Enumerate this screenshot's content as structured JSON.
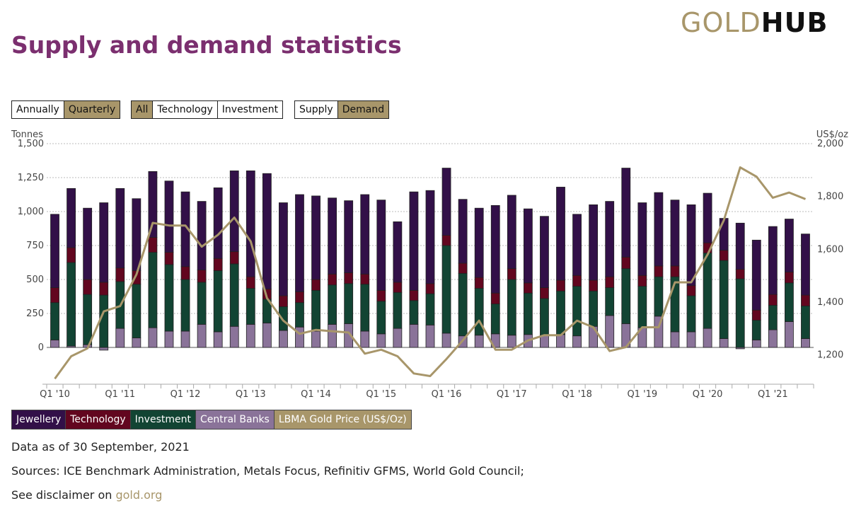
{
  "logo": {
    "gold": "GOLD",
    "hub": "HUB"
  },
  "title": "Supply and demand statistics",
  "controls": {
    "period": [
      {
        "label": "Annually",
        "active": false
      },
      {
        "label": "Quarterly",
        "active": true
      }
    ],
    "sector": [
      {
        "label": "All",
        "active": true
      },
      {
        "label": "Technology",
        "active": false
      },
      {
        "label": "Investment",
        "active": false
      }
    ],
    "side": [
      {
        "label": "Supply",
        "active": false
      },
      {
        "label": "Demand",
        "active": true
      }
    ]
  },
  "legend": [
    {
      "label": "Jewellery",
      "color": "#321048"
    },
    {
      "label": "Technology",
      "color": "#62061f"
    },
    {
      "label": "Investment",
      "color": "#124433"
    },
    {
      "label": "Central Banks",
      "color": "#8a7399"
    },
    {
      "label": "LBMA Gold Price (US$/Oz)",
      "color": "#a8966a"
    }
  ],
  "footer": {
    "data_as_of": "Data as of 30 September, 2021",
    "sources": "Sources: ICE Benchmark Administration, Metals Focus, Refinitiv GFMS, World Gold Council;",
    "disclaimer_prefix": "See disclaimer on ",
    "disclaimer_link": "gold.org"
  },
  "chart_data": {
    "type": "bar",
    "left_axis_label": "Tonnes",
    "right_axis_label": "US$/oz",
    "left_ticks": [
      "1,500",
      "1,250",
      "1,000",
      "750",
      "500",
      "250",
      "0"
    ],
    "left_tick_values": [
      1500,
      1250,
      1000,
      750,
      500,
      250,
      0
    ],
    "right_ticks": [
      "2,000",
      "1,800",
      "1,600",
      "1,400",
      "1,200"
    ],
    "right_tick_values": [
      2000,
      1800,
      1600,
      1400,
      1200
    ],
    "left_ylim": [
      -250,
      1500
    ],
    "right_ylim": [
      1100,
      2000
    ],
    "x_tick_labels": [
      "Q1 '10",
      "Q1 '11",
      "Q1 '12",
      "Q1 '13",
      "Q1 '14",
      "Q1 '15",
      "Q1 '16",
      "Q1 '17",
      "Q1 '18",
      "Q1 '19",
      "Q1 '20",
      "Q1 '21"
    ],
    "grid": true,
    "stacked_series": [
      {
        "name": "Central Banks",
        "values": [
          55,
          10,
          20,
          -20,
          140,
          70,
          145,
          120,
          120,
          170,
          115,
          155,
          170,
          180,
          125,
          150,
          120,
          170,
          175,
          120,
          100,
          140,
          170,
          165,
          105,
          85,
          90,
          100,
          90,
          95,
          90,
          95,
          85,
          155,
          235,
          175,
          145,
          230,
          115,
          115,
          140,
          65,
          -10,
          55,
          130,
          190,
          65
        ]
      },
      {
        "name": "Investment",
        "values": [
          275,
          615,
          370,
          385,
          345,
          395,
          555,
          490,
          380,
          310,
          450,
          460,
          265,
          175,
          175,
          180,
          300,
          290,
          295,
          345,
          240,
          265,
          175,
          230,
          645,
          460,
          345,
          220,
          410,
          305,
          270,
          320,
          365,
          260,
          205,
          405,
          305,
          290,
          405,
          265,
          555,
          575,
          505,
          145,
          180,
          285,
          240
        ]
      },
      {
        "name": "Technology",
        "values": [
          110,
          110,
          110,
          95,
          100,
          100,
          110,
          90,
          95,
          90,
          90,
          90,
          85,
          75,
          80,
          80,
          80,
          80,
          80,
          75,
          80,
          75,
          75,
          75,
          75,
          75,
          80,
          80,
          80,
          75,
          80,
          80,
          80,
          80,
          80,
          85,
          80,
          80,
          80,
          75,
          75,
          75,
          70,
          75,
          80,
          80,
          80
        ]
      },
      {
        "name": "Jewellery",
        "values": [
          540,
          435,
          525,
          585,
          585,
          530,
          485,
          525,
          550,
          505,
          520,
          595,
          780,
          850,
          685,
          715,
          615,
          560,
          530,
          585,
          665,
          445,
          725,
          685,
          495,
          470,
          510,
          645,
          540,
          545,
          525,
          685,
          450,
          555,
          555,
          655,
          535,
          540,
          485,
          595,
          365,
          235,
          340,
          515,
          500,
          390,
          450
        ]
      }
    ],
    "price_series": {
      "name": "LBMA Gold Price (US$/Oz)",
      "values": [
        1110,
        1195,
        1225,
        1365,
        1385,
        1505,
        1700,
        1690,
        1690,
        1610,
        1655,
        1720,
        1630,
        1415,
        1330,
        1280,
        1295,
        1290,
        1285,
        1205,
        1220,
        1195,
        1130,
        1120,
        1185,
        1255,
        1330,
        1220,
        1220,
        1255,
        1275,
        1275,
        1330,
        1305,
        1215,
        1230,
        1305,
        1305,
        1475,
        1475,
        1580,
        1710,
        1910,
        1875,
        1795,
        1815,
        1790
      ]
    }
  }
}
